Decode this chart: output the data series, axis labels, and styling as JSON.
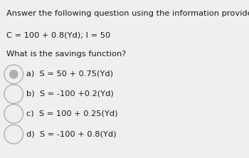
{
  "background_color": "#f0efed",
  "header": "Answer the following question using the information provided:",
  "given": "C = 100 + 0.8(Yd); I = 50",
  "question": "What is the savings function?",
  "options": [
    "a)  S = 50 + 0.75(Yd)",
    "b)  S = -100 +0.2(Yd)",
    "c)  S = 100 + 0.25(Yd)",
    "d)  S = -100 + 0.8(Yd)"
  ],
  "selected_index": 0,
  "font_size_header": 8.2,
  "font_size_given": 8.2,
  "font_size_question": 8.2,
  "font_size_options": 8.2,
  "text_color": "#1a1a1a",
  "circle_edge_color": "#aaaaaa",
  "circle_fill_color": "#c0c0c0",
  "selected_inner_color": "#b0b0b0"
}
